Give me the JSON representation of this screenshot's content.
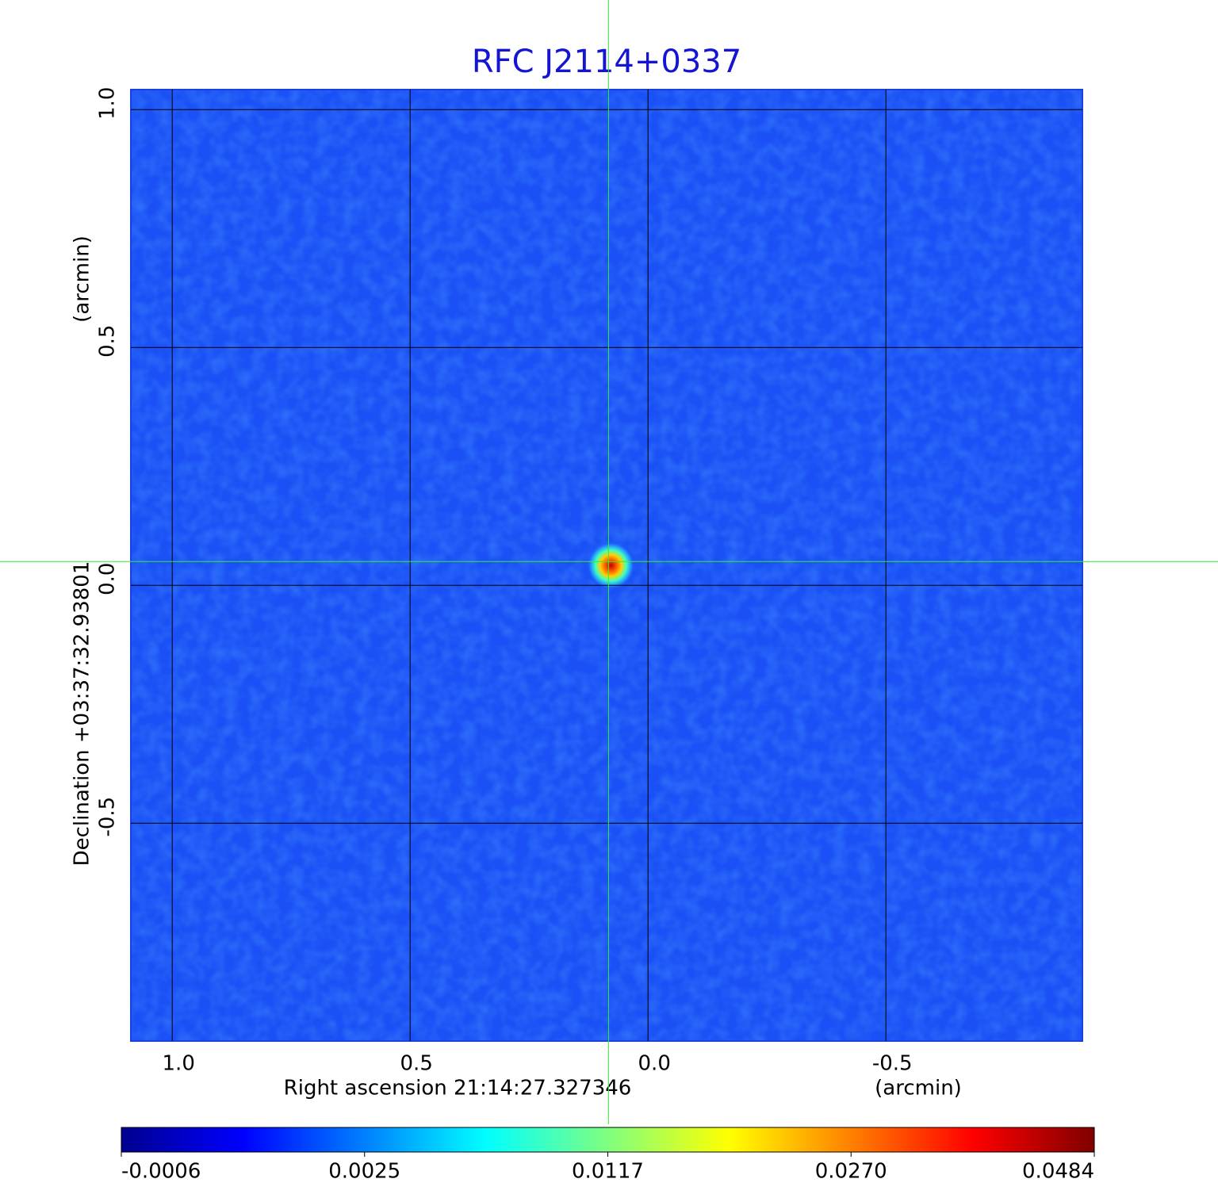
{
  "chart_data": {
    "type": "image",
    "title": "RFC J2114+0337",
    "x_label": "Right ascension  21:14:27.327346",
    "x_unit": "(arcmin)",
    "y_label": "Declination  +03:37:32.93801",
    "y_unit": "(arcmin)",
    "xlim": [
      1.087,
      -0.913
    ],
    "ylim": [
      -0.958,
      1.042
    ],
    "xticks": [
      {
        "value": 1,
        "label": "1.0"
      },
      0.5,
      {
        "value": 0,
        "label": "0.0"
      },
      -0.5
    ],
    "yticks": [
      {
        "value": 1,
        "label": "1.0"
      },
      0.5,
      {
        "value": 0,
        "label": "0.0"
      },
      -0.5
    ],
    "grid": true,
    "crosshair": {
      "x": 0.083,
      "y": 0.05,
      "color": "#33ee33"
    },
    "colorbar": {
      "ticks": [
        -0.0006,
        0.0025,
        0.0117,
        {
          "value": 0.027,
          "label": "0.0270"
        },
        0.0484
      ],
      "colors": [
        "#00008f",
        "#0000ff",
        "#0080ff",
        "#00ffff",
        "#80ff80",
        "#ffff00",
        "#ff8000",
        "#ff0000",
        "#800000"
      ]
    }
  }
}
